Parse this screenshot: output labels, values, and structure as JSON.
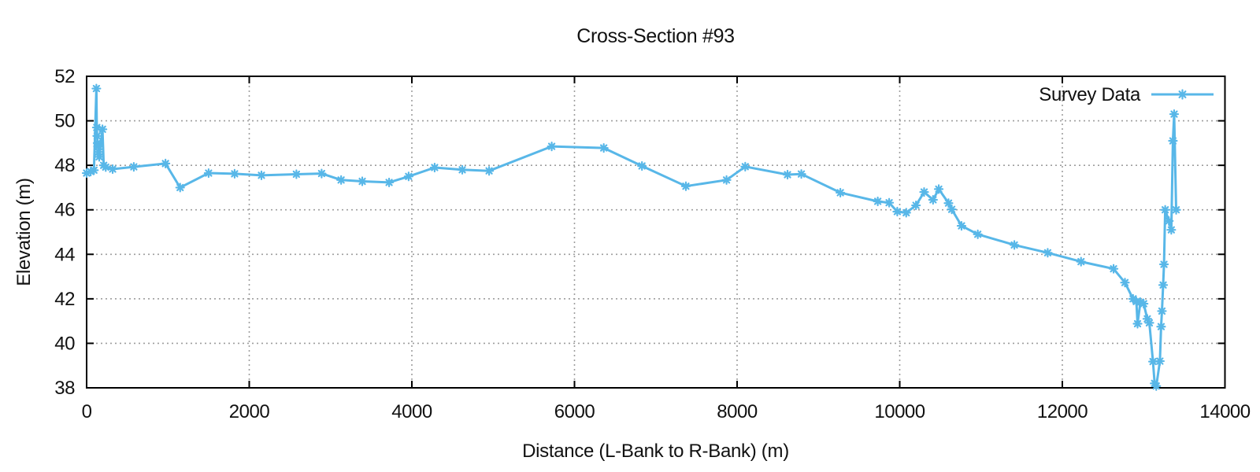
{
  "chart_data": {
    "type": "line",
    "title": "Cross-Section #93",
    "xlabel": "Distance (L-Bank to R-Bank) (m)",
    "ylabel": "Elevation (m)",
    "xlim": [
      0,
      14000
    ],
    "ylim": [
      38,
      52
    ],
    "x_ticks": [
      0,
      2000,
      4000,
      6000,
      8000,
      10000,
      12000,
      14000
    ],
    "y_ticks": [
      38,
      40,
      42,
      44,
      46,
      48,
      50,
      52
    ],
    "grid": true,
    "legend_position": "top-right-inside",
    "series": [
      {
        "name": "Survey Data",
        "color": "#58B7E8",
        "marker": "asterisk",
        "points": [
          [
            0,
            47.65
          ],
          [
            50,
            47.72
          ],
          [
            90,
            47.78
          ],
          [
            120,
            51.45
          ],
          [
            125,
            49.7
          ],
          [
            130,
            49.32
          ],
          [
            135,
            49.0
          ],
          [
            140,
            48.85
          ],
          [
            148,
            48.6
          ],
          [
            155,
            48.38
          ],
          [
            195,
            49.62
          ],
          [
            210,
            48.0
          ],
          [
            235,
            47.92
          ],
          [
            320,
            47.83
          ],
          [
            580,
            47.93
          ],
          [
            970,
            48.08
          ],
          [
            1150,
            47.0
          ],
          [
            1500,
            47.65
          ],
          [
            1820,
            47.62
          ],
          [
            2150,
            47.55
          ],
          [
            2580,
            47.6
          ],
          [
            2890,
            47.63
          ],
          [
            3130,
            47.34
          ],
          [
            3390,
            47.28
          ],
          [
            3720,
            47.23
          ],
          [
            3960,
            47.5
          ],
          [
            4280,
            47.9
          ],
          [
            4620,
            47.8
          ],
          [
            4950,
            47.75
          ],
          [
            5720,
            48.85
          ],
          [
            6360,
            48.78
          ],
          [
            6830,
            47.97
          ],
          [
            7370,
            47.06
          ],
          [
            7870,
            47.34
          ],
          [
            8100,
            47.94
          ],
          [
            8620,
            47.58
          ],
          [
            8790,
            47.61
          ],
          [
            9270,
            46.77
          ],
          [
            9730,
            46.38
          ],
          [
            9870,
            46.32
          ],
          [
            9970,
            45.92
          ],
          [
            10080,
            45.87
          ],
          [
            10200,
            46.2
          ],
          [
            10300,
            46.8
          ],
          [
            10410,
            46.45
          ],
          [
            10480,
            46.93
          ],
          [
            10600,
            46.3
          ],
          [
            10640,
            46.02
          ],
          [
            10760,
            45.28
          ],
          [
            10960,
            44.9
          ],
          [
            11410,
            44.42
          ],
          [
            11820,
            44.07
          ],
          [
            12230,
            43.67
          ],
          [
            12630,
            43.35
          ],
          [
            12770,
            42.73
          ],
          [
            12870,
            42.0
          ],
          [
            12910,
            41.88
          ],
          [
            12925,
            40.88
          ],
          [
            12960,
            41.85
          ],
          [
            13000,
            41.78
          ],
          [
            13045,
            41.1
          ],
          [
            13070,
            40.92
          ],
          [
            13115,
            39.18
          ],
          [
            13135,
            38.2
          ],
          [
            13155,
            38.08
          ],
          [
            13200,
            39.2
          ],
          [
            13215,
            40.75
          ],
          [
            13225,
            41.45
          ],
          [
            13240,
            42.62
          ],
          [
            13250,
            43.55
          ],
          [
            13265,
            46.0
          ],
          [
            13310,
            45.5
          ],
          [
            13340,
            45.1
          ],
          [
            13360,
            49.1
          ],
          [
            13375,
            50.3
          ],
          [
            13400,
            46.0
          ]
        ]
      }
    ],
    "style": {
      "grid_color": "#9e9e9e",
      "border_color": "#000000",
      "text_color": "#111111",
      "background": "#ffffff"
    }
  }
}
